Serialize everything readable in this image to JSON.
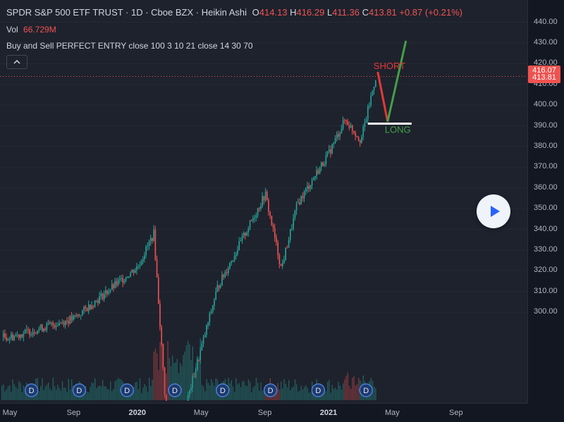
{
  "header": {
    "symbol": "SPDR S&P 500 ETF TRUST · 1D · Cboe BZX · Heikin Ashi",
    "o_label": "O",
    "o_value": "414.13",
    "h_label": "H",
    "h_value": "416.29",
    "l_label": "L",
    "l_value": "411.36",
    "c_label": "C",
    "c_value": "413.81",
    "change": "+0.87 (+0.21%)",
    "vol_label": "Vol",
    "vol_value": "66.729M",
    "indicator": "Buy and Sell PERFECT ENTRY close 100 3 10 21 close 14 30 70",
    "collapse_icon": "chevron-up-icon"
  },
  "price_labels": {
    "high": "416.07",
    "last": "413.81"
  },
  "annotations": {
    "short": "SHORT",
    "long": "LONG"
  },
  "dividend_marker": "D",
  "colors": {
    "up": "#26a69a",
    "down": "#ef5350",
    "short_line": "#e53935",
    "long_line": "#43a047",
    "accent": "#2962ff"
  },
  "chart_data": {
    "type": "candlestick",
    "y_axis": {
      "ticks": [
        440,
        430,
        420,
        410,
        400,
        390,
        380,
        370,
        360,
        350,
        340,
        330,
        320,
        310,
        300
      ],
      "range": [
        294,
        442
      ]
    },
    "x_axis": {
      "ticks": [
        "May",
        "Sep",
        "2020",
        "May",
        "Sep",
        "2021",
        "May",
        "Sep"
      ],
      "bold": [
        "2020",
        "2021"
      ]
    },
    "last_price": 413.81,
    "high_price": 416.07,
    "trend_waypoints": [
      {
        "date": "2019-05",
        "price": 288
      },
      {
        "date": "2019-09",
        "price": 297
      },
      {
        "date": "2020-01",
        "price": 322
      },
      {
        "date": "2020-02",
        "price": 338
      },
      {
        "date": "2020-03",
        "price": 226
      },
      {
        "date": "2020-06",
        "price": 312
      },
      {
        "date": "2020-09",
        "price": 357
      },
      {
        "date": "2020-10",
        "price": 321
      },
      {
        "date": "2020-11",
        "price": 352
      },
      {
        "date": "2021-01",
        "price": 377
      },
      {
        "date": "2021-02",
        "price": 393
      },
      {
        "date": "2021-03",
        "price": 383
      },
      {
        "date": "2021-04",
        "price": 416
      }
    ],
    "dividends": [
      "2019-06",
      "2019-09",
      "2019-12",
      "2020-03",
      "2020-06",
      "2020-09",
      "2020-12",
      "2021-03"
    ],
    "projection": [
      {
        "label": "SHORT",
        "from": 416,
        "to": 392
      },
      {
        "label": "LONG",
        "from": 392,
        "to": 431
      }
    ],
    "support_level": 391
  }
}
